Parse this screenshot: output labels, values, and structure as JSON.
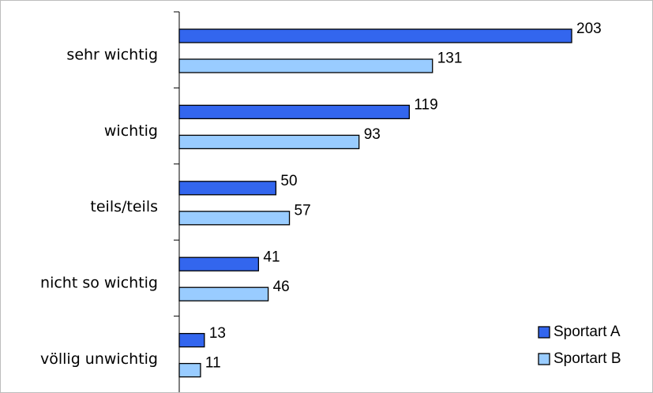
{
  "chart_data": {
    "type": "bar",
    "orientation": "horizontal",
    "categories": [
      "sehr wichtig",
      "wichtig",
      "teils/teils",
      "nicht so wichtig",
      "völlig unwichtig"
    ],
    "series": [
      {
        "name": "Sportart A",
        "values": [
          203,
          119,
          50,
          41,
          13
        ],
        "color": "#3366ee"
      },
      {
        "name": "Sportart B",
        "values": [
          131,
          93,
          57,
          46,
          11
        ],
        "color": "#99ccff"
      }
    ],
    "xlim": [
      0,
      230
    ],
    "grid": false,
    "data_labels": true,
    "legend": {
      "position": "bottom-right"
    },
    "title": "",
    "xlabel": "",
    "ylabel": ""
  },
  "colors": {
    "bar_stroke": "#000000",
    "axis": "#000000",
    "frame": "#bdbdbd"
  }
}
